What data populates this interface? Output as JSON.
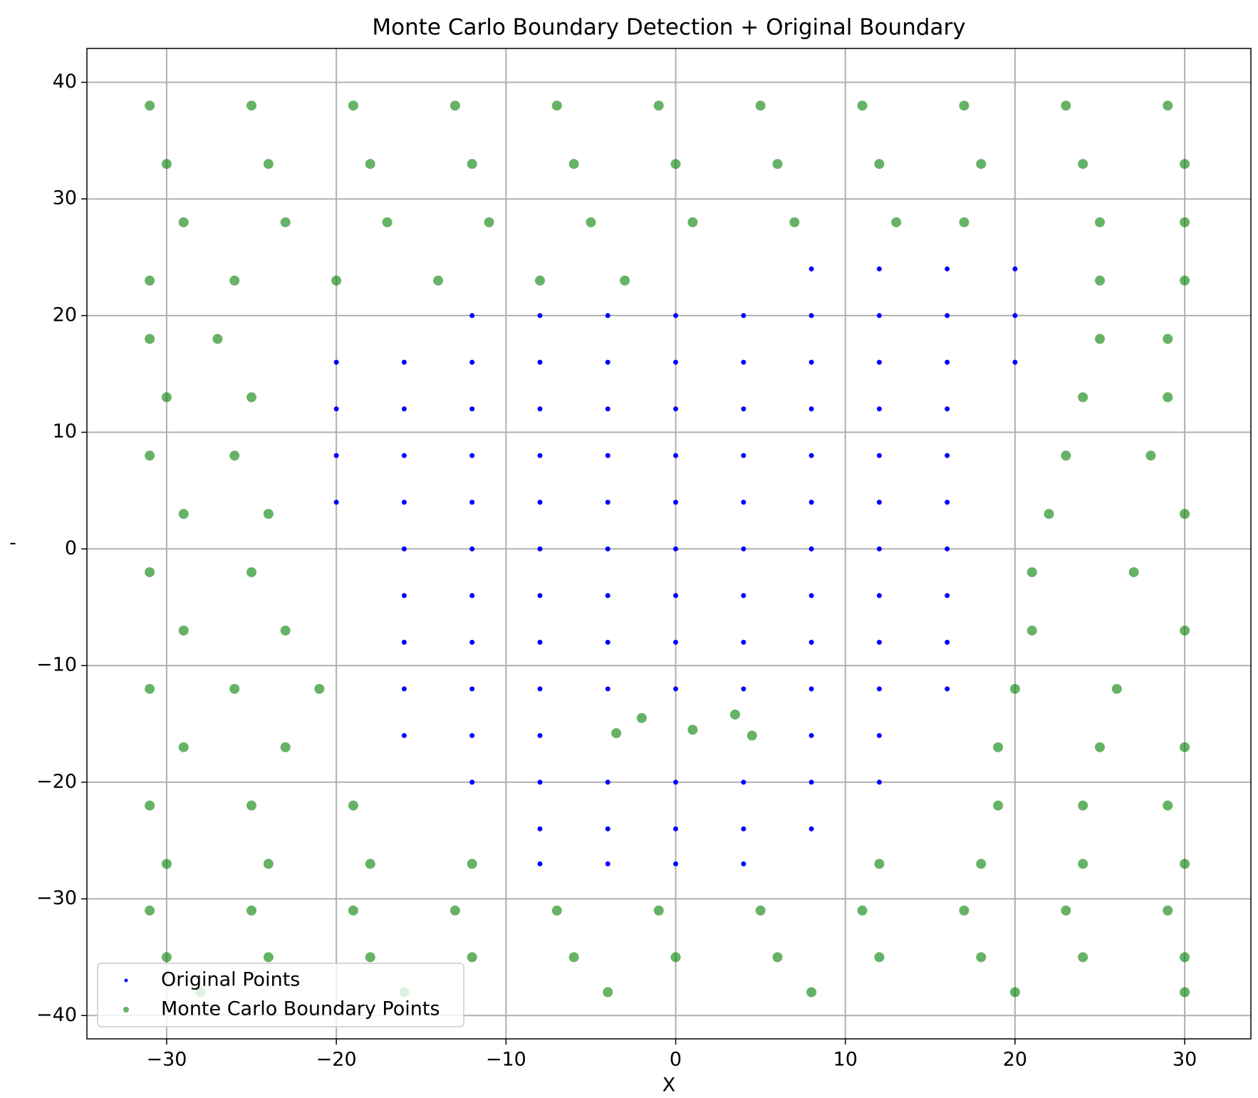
{
  "chart_data": {
    "type": "scatter",
    "title": "Monte Carlo Boundary Detection + Original Boundary",
    "xlabel": "X",
    "ylabel": "-",
    "xlim": [
      -34.7,
      33.9
    ],
    "ylim": [
      -42,
      42.9
    ],
    "xticks": [
      {
        "value": -30,
        "label": "−30"
      },
      {
        "value": -20,
        "label": "−20"
      },
      {
        "value": -10,
        "label": "−10"
      },
      0,
      10,
      20,
      30
    ],
    "yticks": [
      {
        "value": -40,
        "label": "−40"
      },
      {
        "value": -30,
        "label": "−30"
      },
      {
        "value": -20,
        "label": "−20"
      },
      {
        "value": -10,
        "label": "−10"
      },
      0,
      10,
      20,
      30,
      40
    ],
    "grid": true,
    "legend": "lower left",
    "series": [
      {
        "name": "Original Points",
        "color": "#0000ff",
        "x": [
          8,
          12,
          16,
          20,
          -12,
          -8,
          -4,
          0,
          4,
          8,
          12,
          16,
          20,
          -20,
          -16,
          -12,
          -8,
          -4,
          0,
          4,
          8,
          12,
          16,
          20,
          -20,
          -16,
          -12,
          -8,
          -4,
          0,
          4,
          8,
          12,
          16,
          -20,
          -16,
          -12,
          -8,
          -4,
          0,
          4,
          8,
          12,
          16,
          -20,
          -16,
          -12,
          -8,
          -4,
          0,
          4,
          8,
          12,
          16,
          -16,
          -12,
          -8,
          -4,
          0,
          4,
          8,
          12,
          16,
          -16,
          -12,
          -8,
          -4,
          0,
          4,
          8,
          12,
          16,
          -16,
          -12,
          -8,
          -4,
          0,
          4,
          8,
          12,
          16,
          -16,
          -12,
          -8,
          -4,
          0,
          4,
          8,
          12,
          16,
          -16,
          -12,
          -8,
          8,
          12,
          -12,
          -8,
          -4,
          0,
          4,
          8,
          12,
          -8,
          -4,
          0,
          4,
          8,
          -8,
          -4,
          0,
          4
        ],
        "y": [
          24,
          24,
          24,
          24,
          20,
          20,
          20,
          20,
          20,
          20,
          20,
          20,
          20,
          16,
          16,
          16,
          16,
          16,
          16,
          16,
          16,
          16,
          16,
          16,
          12,
          12,
          12,
          12,
          12,
          12,
          12,
          12,
          12,
          12,
          8,
          8,
          8,
          8,
          8,
          8,
          8,
          8,
          8,
          8,
          4,
          4,
          4,
          4,
          4,
          4,
          4,
          4,
          4,
          4,
          0,
          0,
          0,
          0,
          0,
          0,
          0,
          0,
          0,
          -4,
          -4,
          -4,
          -4,
          -4,
          -4,
          -4,
          -4,
          -4,
          -8,
          -8,
          -8,
          -8,
          -8,
          -8,
          -8,
          -8,
          -8,
          -12,
          -12,
          -12,
          -12,
          -12,
          -12,
          -12,
          -12,
          -12,
          -16,
          -16,
          -16,
          -16,
          -16,
          -20,
          -20,
          -20,
          -20,
          -20,
          -20,
          -20,
          -24,
          -24,
          -24,
          -24,
          -24,
          -27,
          -27,
          -27,
          -27
        ]
      },
      {
        "name": "Monte Carlo Boundary Points",
        "color": "#008000",
        "x": [
          -31,
          -25,
          -19,
          -13,
          -7,
          -1,
          5,
          11,
          17,
          23,
          29,
          -30,
          -24,
          -18,
          -12,
          -6,
          0,
          6,
          12,
          18,
          24,
          30,
          -29,
          -23,
          -17,
          -11,
          -5,
          1,
          7,
          13,
          17,
          25,
          30,
          -31,
          -26,
          -20,
          -14,
          -8,
          -3,
          25,
          30,
          -31,
          -27,
          25,
          29,
          -30,
          -25,
          24,
          29,
          -31,
          -26,
          23,
          28,
          -29,
          -24,
          22,
          30,
          -31,
          -25,
          21,
          27,
          -29,
          -23,
          21,
          30,
          -31,
          -26,
          -21,
          20,
          26,
          -29,
          -23,
          19,
          25,
          30,
          -31,
          -25,
          -19,
          19,
          24,
          29,
          -30,
          -24,
          -18,
          -12,
          12,
          18,
          24,
          30,
          -31,
          -25,
          -19,
          -13,
          -7,
          -1,
          5,
          11,
          17,
          23,
          29,
          -30,
          -24,
          -18,
          -12,
          -6,
          0,
          6,
          12,
          18,
          24,
          30,
          -28,
          -16,
          -4,
          8,
          20,
          30,
          -2,
          1,
          3.5,
          -3.5,
          4.5
        ],
        "y": [
          38,
          38,
          38,
          38,
          38,
          38,
          38,
          38,
          38,
          38,
          38,
          33,
          33,
          33,
          33,
          33,
          33,
          33,
          33,
          33,
          33,
          33,
          28,
          28,
          28,
          28,
          28,
          28,
          28,
          28,
          28,
          28,
          28,
          23,
          23,
          23,
          23,
          23,
          23,
          23,
          23,
          18,
          18,
          18,
          18,
          13,
          13,
          13,
          13,
          8,
          8,
          8,
          8,
          3,
          3,
          3,
          3,
          -2,
          -2,
          -2,
          -2,
          -7,
          -7,
          -7,
          -7,
          -12,
          -12,
          -12,
          -12,
          -12,
          -17,
          -17,
          -17,
          -17,
          -17,
          -22,
          -22,
          -22,
          -22,
          -22,
          -22,
          -27,
          -27,
          -27,
          -27,
          -27,
          -27,
          -27,
          -27,
          -31,
          -31,
          -31,
          -31,
          -31,
          -31,
          -31,
          -31,
          -31,
          -31,
          -31,
          -35,
          -35,
          -35,
          -35,
          -35,
          -35,
          -35,
          -35,
          -35,
          -35,
          -35,
          -38,
          -38,
          -38,
          -38,
          -38,
          -38,
          -14.5,
          -15.5,
          -14.2,
          -15.8,
          -16
        ]
      }
    ]
  }
}
